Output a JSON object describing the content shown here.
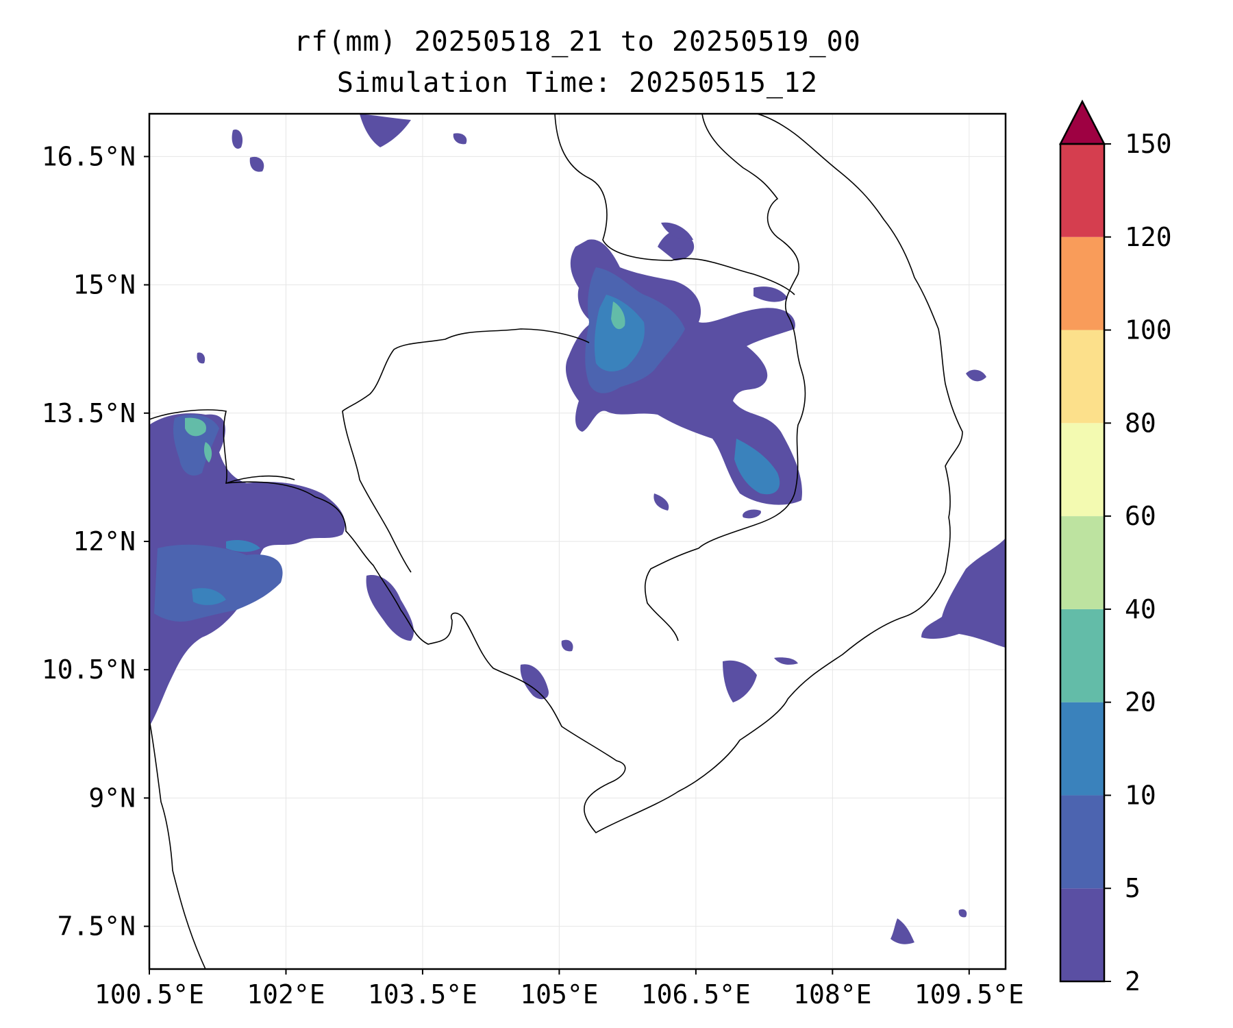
{
  "title": {
    "line1": "rf(mm) 20250518_21 to 20250519_00",
    "line2": "Simulation Time: 20250515_12"
  },
  "map": {
    "lon_ticks": [
      "100.5°E",
      "102°E",
      "103.5°E",
      "105°E",
      "106.5°E",
      "108°E",
      "109.5°E"
    ],
    "lat_ticks": [
      "16.5°N",
      "15°N",
      "13.5°N",
      "12°N",
      "10.5°N",
      "9°N",
      "7.5°N"
    ],
    "lon_range": [
      100.5,
      109.9
    ],
    "lat_range": [
      7.0,
      17.0
    ],
    "gridlines": true
  },
  "colorbar": {
    "levels": [
      2,
      5,
      10,
      20,
      40,
      60,
      80,
      100,
      120,
      150
    ],
    "tick_labels": [
      "2",
      "5",
      "10",
      "20",
      "40",
      "60",
      "80",
      "100",
      "120",
      "150"
    ],
    "colors": [
      "#5a4fa3",
      "#4c64b0",
      "#3a82bc",
      "#63bca8",
      "#bde3a0",
      "#f3fab1",
      "#fce08b",
      "#f99c5a",
      "#d53e4f"
    ],
    "extend_color": "#9e0142",
    "extend": "max"
  },
  "colors": {
    "frame": "#000000",
    "grid": "#e6e6e6",
    "coast": "#000000"
  }
}
